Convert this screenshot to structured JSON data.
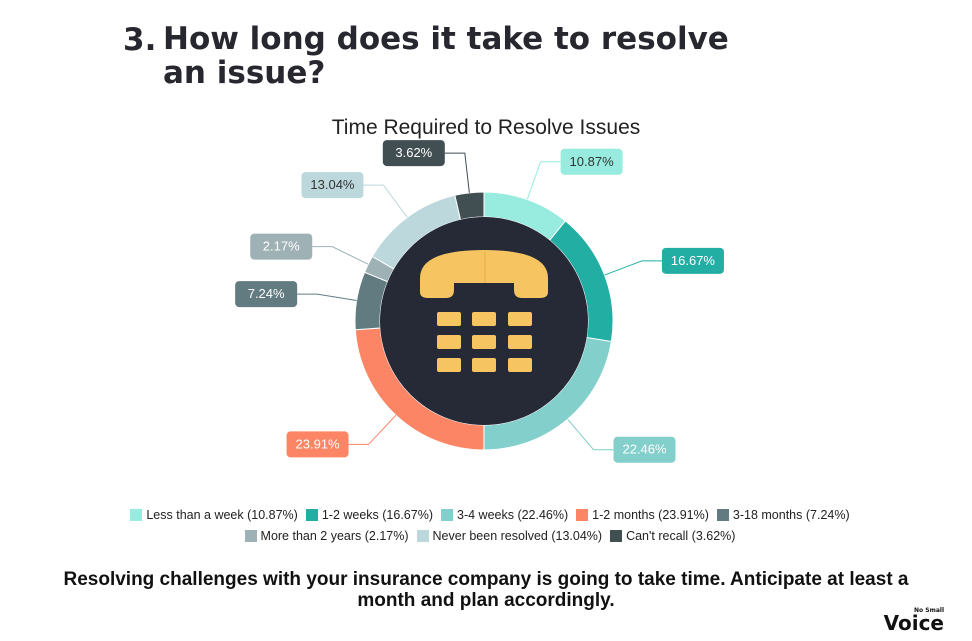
{
  "heading": {
    "number": "3.",
    "text": "How long does it take to resolve an issue?"
  },
  "chart_data": {
    "type": "pie",
    "style": "donut",
    "title": "Time Required to Resolve Issues",
    "series": [
      {
        "name": "Less than a week",
        "value": 10.87,
        "label": "10.87%",
        "color": "#97ecdf",
        "legend": "Less than a week (10.87%)"
      },
      {
        "name": "1-2 weeks",
        "value": 16.67,
        "label": "16.67%",
        "color": "#23aea3",
        "legend": "1-2 weeks (16.67%)"
      },
      {
        "name": "3-4 weeks",
        "value": 22.46,
        "label": "22.46%",
        "color": "#82cfcb",
        "legend": "3-4 weeks (22.46%)"
      },
      {
        "name": "1-2 months",
        "value": 23.91,
        "label": "23.91%",
        "color": "#fc8565",
        "legend": "1-2 months (23.91%)"
      },
      {
        "name": "3-18 months",
        "value": 7.24,
        "label": "7.24%",
        "color": "#617b80",
        "legend": "3-18 months (7.24%)"
      },
      {
        "name": "More than 2 years",
        "value": 2.17,
        "label": "2.17%",
        "color": "#9eb2b5",
        "legend": "More than 2 years (2.17%)"
      },
      {
        "name": "Never been resolved",
        "value": 13.04,
        "label": "13.04%",
        "color": "#bcd8dc",
        "legend": "Never been resolved (13.04%)"
      },
      {
        "name": "Can't recall",
        "value": 3.62,
        "label": "3.62%",
        "color": "#414f52",
        "legend": "Can't recall (3.62%)"
      }
    ],
    "legend_position": "bottom"
  },
  "colors": {
    "center_disc": "#262a37",
    "phone_icon": "#f7c462",
    "phone_icon_shade": "#e8b44e"
  },
  "icons": {
    "center": "telephone-icon"
  },
  "footer": {
    "text": "Resolving challenges with your insurance company is going to take time.  Anticipate at least a month and plan accordingly."
  },
  "brand": {
    "name": "Voice",
    "tagline": "No Small"
  }
}
